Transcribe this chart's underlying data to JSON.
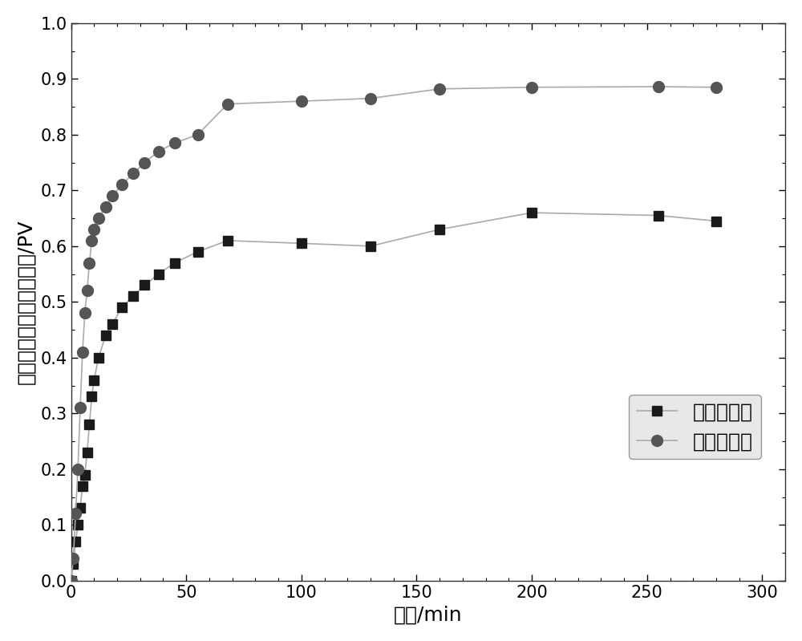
{
  "series1_label": "润湿反转前",
  "series2_label": "润湿翻转后",
  "series1_x": [
    0,
    1,
    2,
    3,
    4,
    5,
    6,
    7,
    8,
    9,
    10,
    12,
    15,
    18,
    22,
    27,
    32,
    38,
    45,
    55,
    68,
    100,
    130,
    160,
    200,
    255,
    280
  ],
  "series1_y": [
    0.0,
    0.03,
    0.07,
    0.1,
    0.13,
    0.17,
    0.19,
    0.23,
    0.28,
    0.33,
    0.36,
    0.4,
    0.44,
    0.46,
    0.49,
    0.51,
    0.53,
    0.55,
    0.57,
    0.59,
    0.61,
    0.605,
    0.6,
    0.63,
    0.66,
    0.655,
    0.645
  ],
  "series2_x": [
    0,
    1,
    2,
    3,
    4,
    5,
    6,
    7,
    8,
    9,
    10,
    12,
    15,
    18,
    22,
    27,
    32,
    38,
    45,
    55,
    68,
    100,
    130,
    160,
    200,
    255,
    280
  ],
  "series2_y": [
    0.0,
    0.04,
    0.12,
    0.2,
    0.31,
    0.41,
    0.48,
    0.52,
    0.57,
    0.61,
    0.63,
    0.65,
    0.67,
    0.69,
    0.71,
    0.73,
    0.75,
    0.77,
    0.785,
    0.8,
    0.855,
    0.86,
    0.865,
    0.882,
    0.885,
    0.886,
    0.885
  ],
  "series1_color": "#1a1a1a",
  "series2_color": "#555555",
  "line_color": "#aaaaaa",
  "xlabel": "时间/min",
  "ylabel": "累积驱出的地层水的体积/PV",
  "xlim": [
    0,
    310
  ],
  "ylim": [
    0.0,
    1.0
  ],
  "xticks": [
    0,
    50,
    100,
    150,
    200,
    250,
    300
  ],
  "yticks": [
    0.0,
    0.1,
    0.2,
    0.3,
    0.4,
    0.5,
    0.6,
    0.7,
    0.8,
    0.9,
    1.0
  ],
  "marker1": "s",
  "marker2": "o",
  "markersize1": 9,
  "markersize2": 10,
  "figsize": [
    10.0,
    7.99
  ],
  "dpi": 100,
  "font_size_label": 18,
  "font_size_tick": 15,
  "font_size_legend": 18,
  "linewidth": 1.2,
  "bg_color": "#ffffff",
  "legend_facecolor": "#e8e8e8"
}
